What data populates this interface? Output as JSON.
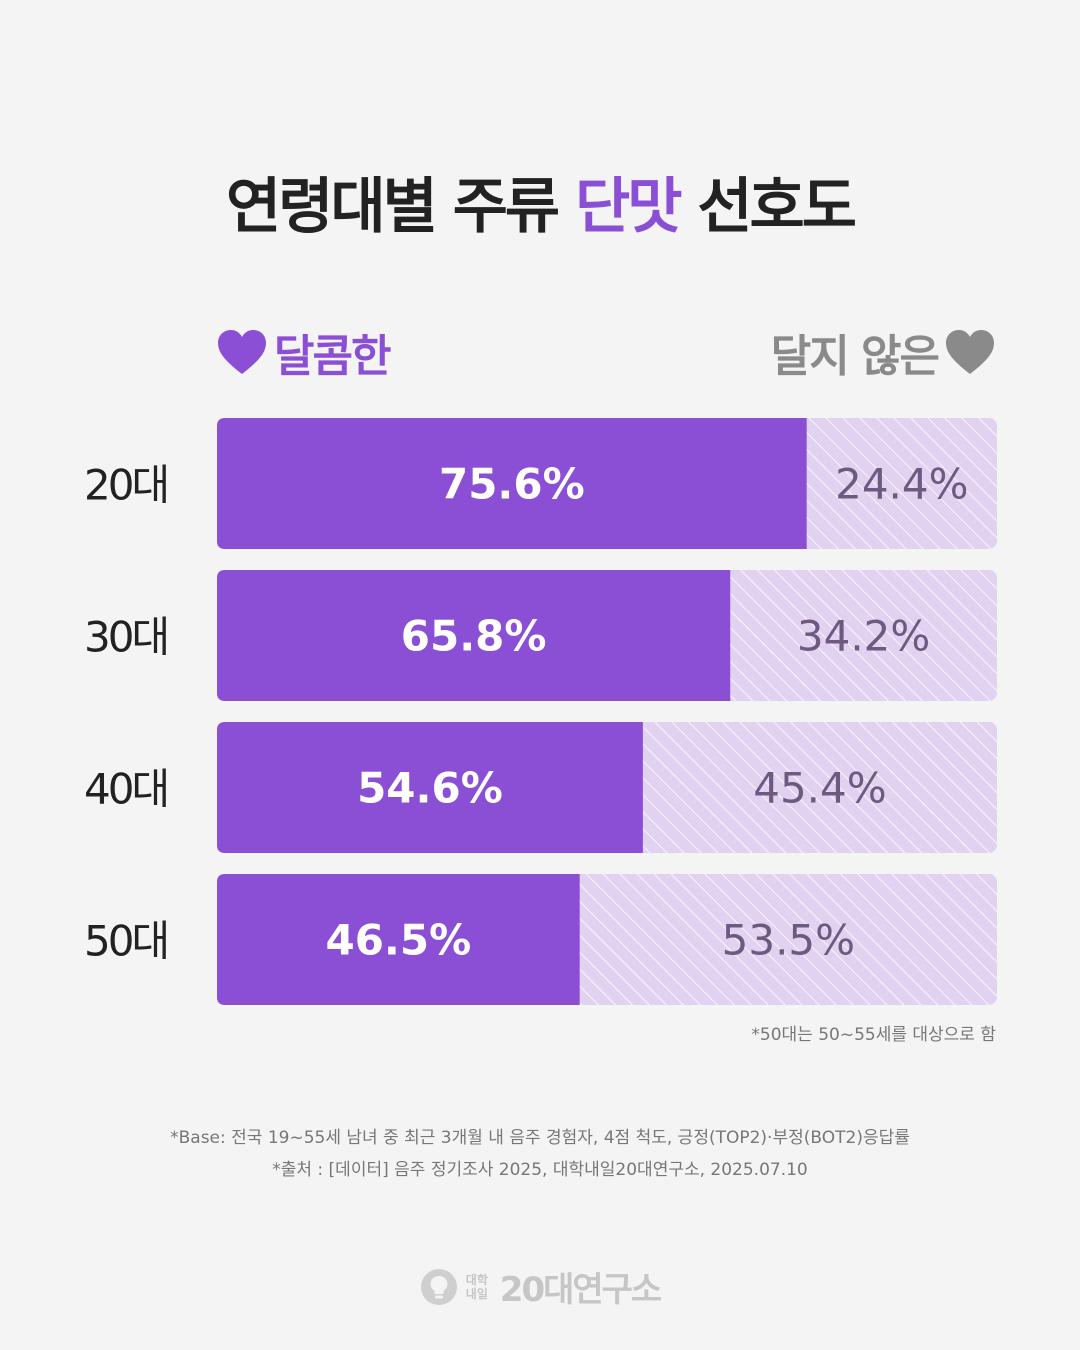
{
  "title": {
    "prefix": "연령대별 주류",
    "accent": "단맛",
    "suffix": "선호도"
  },
  "legend": {
    "sweet_label": "달콤한",
    "not_sweet_label": "달지 않은",
    "sweet_icon": "heart-icon",
    "not_sweet_icon": "heart-icon"
  },
  "colors": {
    "sweet": "#8b4fd6",
    "not_sweet": "#e0d2f0",
    "not_sweet_text": "#6e5a80",
    "hatch": "#ffffff"
  },
  "chart_data": {
    "type": "bar",
    "orientation": "horizontal",
    "stacked": true,
    "categories": [
      "20대",
      "30대",
      "40대",
      "50대"
    ],
    "series": [
      {
        "name": "달콤한",
        "values": [
          75.6,
          65.8,
          54.6,
          46.5
        ]
      },
      {
        "name": "달지 않은",
        "values": [
          24.4,
          34.2,
          45.4,
          53.5
        ]
      }
    ],
    "data_labels": [
      [
        "75.6%",
        "24.4%"
      ],
      [
        "65.8%",
        "34.2%"
      ],
      [
        "54.6%",
        "45.4%"
      ],
      [
        "46.5%",
        "53.5%"
      ]
    ],
    "xlim": [
      0,
      100
    ],
    "unit": "%",
    "legend_position": "top"
  },
  "note": "*50대는 50~55세를 대상으로 함",
  "footer": {
    "base": "*Base: 전국 19~55세 남녀 중 최근 3개월 내 음주 경험자, 4점 척도, 긍정(TOP2)·부정(BOT2)응답률",
    "source": "*출처 : [데이터] 음주 정기조사 2025, 대학내일20대연구소, 2025.07.10"
  },
  "brand": {
    "small_top": "대학",
    "small_bottom": "내일",
    "name": "20대연구소",
    "icon": "lightbulb-icon"
  }
}
